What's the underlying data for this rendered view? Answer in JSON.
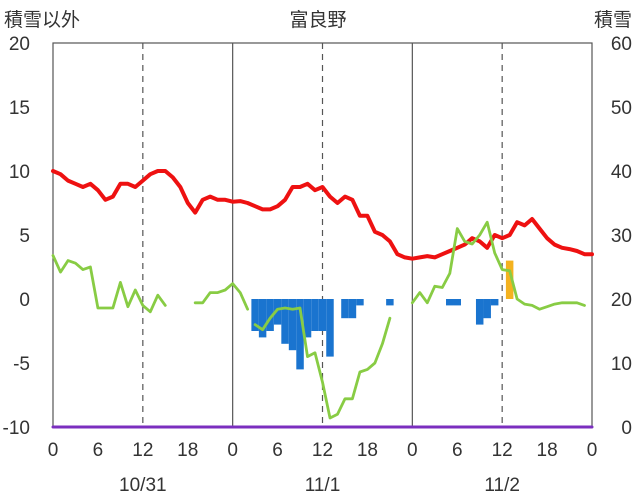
{
  "chart_data": {
    "type": "bar+line",
    "title": "富良野",
    "left_axis_label": "積雪以外",
    "right_axis_label": "積雪",
    "left_ylim": [
      -10,
      20
    ],
    "left_yticks": [
      "20",
      "15",
      "10",
      "5",
      "0",
      "-5",
      "-10"
    ],
    "right_ylim": [
      0,
      60
    ],
    "right_yticks": [
      "60",
      "50",
      "40",
      "30",
      "20",
      "10",
      "0"
    ],
    "x_range_hours": [
      0,
      72
    ],
    "x_ticks": [
      "0",
      "6",
      "12",
      "18",
      "0",
      "6",
      "12",
      "18",
      "0",
      "6",
      "12",
      "18",
      "0"
    ],
    "date_labels": [
      {
        "hour": 12,
        "label": "10/31"
      },
      {
        "hour": 36,
        "label": "11/1"
      },
      {
        "hour": 60,
        "label": "11/2"
      }
    ],
    "grid": {
      "dashed_hours": [
        12,
        36,
        60
      ],
      "solid_hours": [
        24,
        48
      ]
    },
    "series": [
      {
        "kind": "line",
        "color": "#ee1111",
        "axis": "right",
        "points": [
          [
            0,
            40
          ],
          [
            1,
            39.5
          ],
          [
            2,
            38.5
          ],
          [
            3,
            38
          ],
          [
            4,
            37.5
          ],
          [
            5,
            38
          ],
          [
            6,
            37
          ],
          [
            7,
            35.5
          ],
          [
            8,
            36
          ],
          [
            9,
            38
          ],
          [
            10,
            38
          ],
          [
            11,
            37.5
          ],
          [
            12,
            38.5
          ],
          [
            13,
            39.5
          ],
          [
            14,
            40
          ],
          [
            15,
            40
          ],
          [
            16,
            39
          ],
          [
            17,
            37.5
          ],
          [
            18,
            35
          ],
          [
            19,
            33.5
          ],
          [
            20,
            35.5
          ],
          [
            21,
            36
          ],
          [
            22,
            35.5
          ],
          [
            23,
            35.5
          ],
          [
            24,
            35.2
          ],
          [
            25,
            35.3
          ],
          [
            26,
            35
          ],
          [
            27,
            34.5
          ],
          [
            28,
            34
          ],
          [
            29,
            34
          ],
          [
            30,
            34.5
          ],
          [
            31,
            35.5
          ],
          [
            32,
            37.5
          ],
          [
            33,
            37.5
          ],
          [
            34,
            38
          ],
          [
            35,
            37
          ],
          [
            36,
            37.5
          ],
          [
            37,
            36
          ],
          [
            38,
            35
          ],
          [
            39,
            36
          ],
          [
            40,
            35.5
          ],
          [
            41,
            33
          ],
          [
            42,
            33
          ],
          [
            43,
            30.5
          ],
          [
            44,
            30
          ],
          [
            45,
            29
          ],
          [
            46,
            27
          ],
          [
            47,
            26.5
          ],
          [
            48,
            26.3
          ],
          [
            49,
            26.5
          ],
          [
            50,
            26.7
          ],
          [
            51,
            26.5
          ],
          [
            52,
            27
          ],
          [
            53,
            27.5
          ],
          [
            54,
            28
          ],
          [
            55,
            28.5
          ],
          [
            56,
            29.5
          ],
          [
            57,
            29
          ],
          [
            58,
            28
          ],
          [
            59,
            30
          ],
          [
            60,
            29.5
          ],
          [
            61,
            30
          ],
          [
            62,
            32
          ],
          [
            63,
            31.5
          ],
          [
            64,
            32.5
          ],
          [
            65,
            31
          ],
          [
            66,
            29.5
          ],
          [
            67,
            28.5
          ],
          [
            68,
            28
          ],
          [
            69,
            27.8
          ],
          [
            70,
            27.5
          ],
          [
            71,
            27
          ],
          [
            72,
            27
          ]
        ]
      },
      {
        "kind": "line",
        "color": "#88cc44",
        "axis": "left",
        "segments": [
          [
            [
              0,
              3.4
            ],
            [
              1,
              2.1
            ],
            [
              2,
              3
            ],
            [
              3,
              2.8
            ],
            [
              4,
              2.3
            ],
            [
              5,
              2.5
            ],
            [
              6,
              -0.7
            ],
            [
              7,
              -0.7
            ],
            [
              8,
              -0.7
            ],
            [
              9,
              1.3
            ],
            [
              10,
              -0.6
            ],
            [
              11,
              0.7
            ],
            [
              12,
              -0.5
            ],
            [
              13,
              -1
            ],
            [
              14,
              0.3
            ],
            [
              15,
              -0.5
            ]
          ],
          [
            [
              19,
              -0.3
            ],
            [
              20,
              -0.3
            ],
            [
              21,
              0.5
            ],
            [
              22,
              0.5
            ],
            [
              23,
              0.7
            ],
            [
              24,
              1.2
            ],
            [
              25,
              0.5
            ],
            [
              26,
              -0.8
            ]
          ],
          [
            [
              27,
              -2
            ],
            [
              28,
              -2.4
            ],
            [
              29,
              -1.5
            ],
            [
              30,
              -0.8
            ],
            [
              31,
              -0.7
            ],
            [
              32,
              -0.8
            ],
            [
              33,
              -0.7
            ],
            [
              34,
              -4.5
            ],
            [
              35,
              -4.2
            ],
            [
              36,
              -6.5
            ],
            [
              37,
              -9.3
            ],
            [
              38,
              -9
            ],
            [
              39,
              -7.8
            ],
            [
              40,
              -7.8
            ],
            [
              41,
              -5.7
            ],
            [
              42,
              -5.5
            ],
            [
              43,
              -5
            ],
            [
              44,
              -3.5
            ],
            [
              45,
              -1.5
            ]
          ],
          [
            [
              48,
              -0.3
            ],
            [
              49,
              0.5
            ],
            [
              50,
              -0.3
            ],
            [
              51,
              1
            ],
            [
              52,
              0.9
            ],
            [
              53,
              2
            ],
            [
              54,
              5.5
            ],
            [
              55,
              4.5
            ],
            [
              56,
              4.3
            ],
            [
              57,
              5
            ],
            [
              58,
              6
            ],
            [
              59,
              3.6
            ],
            [
              60,
              2.3
            ],
            [
              61,
              2.2
            ],
            [
              62,
              0
            ],
            [
              63,
              -0.4
            ],
            [
              64,
              -0.5
            ],
            [
              65,
              -0.8
            ],
            [
              66,
              -0.6
            ],
            [
              67,
              -0.4
            ],
            [
              68,
              -0.3
            ],
            [
              69,
              -0.3
            ],
            [
              70,
              -0.3
            ],
            [
              71,
              -0.5
            ]
          ]
        ]
      },
      {
        "kind": "bar",
        "color": "#1a74cf",
        "axis": "left",
        "bars": [
          [
            27,
            -2.5
          ],
          [
            28,
            -3
          ],
          [
            29,
            -2.5
          ],
          [
            30,
            -2
          ],
          [
            31,
            -3.5
          ],
          [
            32,
            -4
          ],
          [
            33,
            -5.5
          ],
          [
            34,
            -3
          ],
          [
            35,
            -2.5
          ],
          [
            36,
            -2.5
          ],
          [
            37,
            -4.5
          ],
          [
            39,
            -1.5
          ],
          [
            40,
            -1.5
          ],
          [
            41,
            -0.5
          ],
          [
            45,
            -0.5
          ],
          [
            53,
            -0.5
          ],
          [
            54,
            -0.5
          ],
          [
            57,
            -2
          ],
          [
            58,
            -1.5
          ],
          [
            59,
            -0.5
          ]
        ]
      },
      {
        "kind": "bar",
        "color": "#f4b21f",
        "axis": "left",
        "bars": [
          [
            61,
            3
          ]
        ]
      },
      {
        "kind": "line",
        "color": "#7b2fbf",
        "axis": "left",
        "points": [
          [
            0,
            -10
          ],
          [
            72,
            -10
          ]
        ]
      }
    ]
  }
}
